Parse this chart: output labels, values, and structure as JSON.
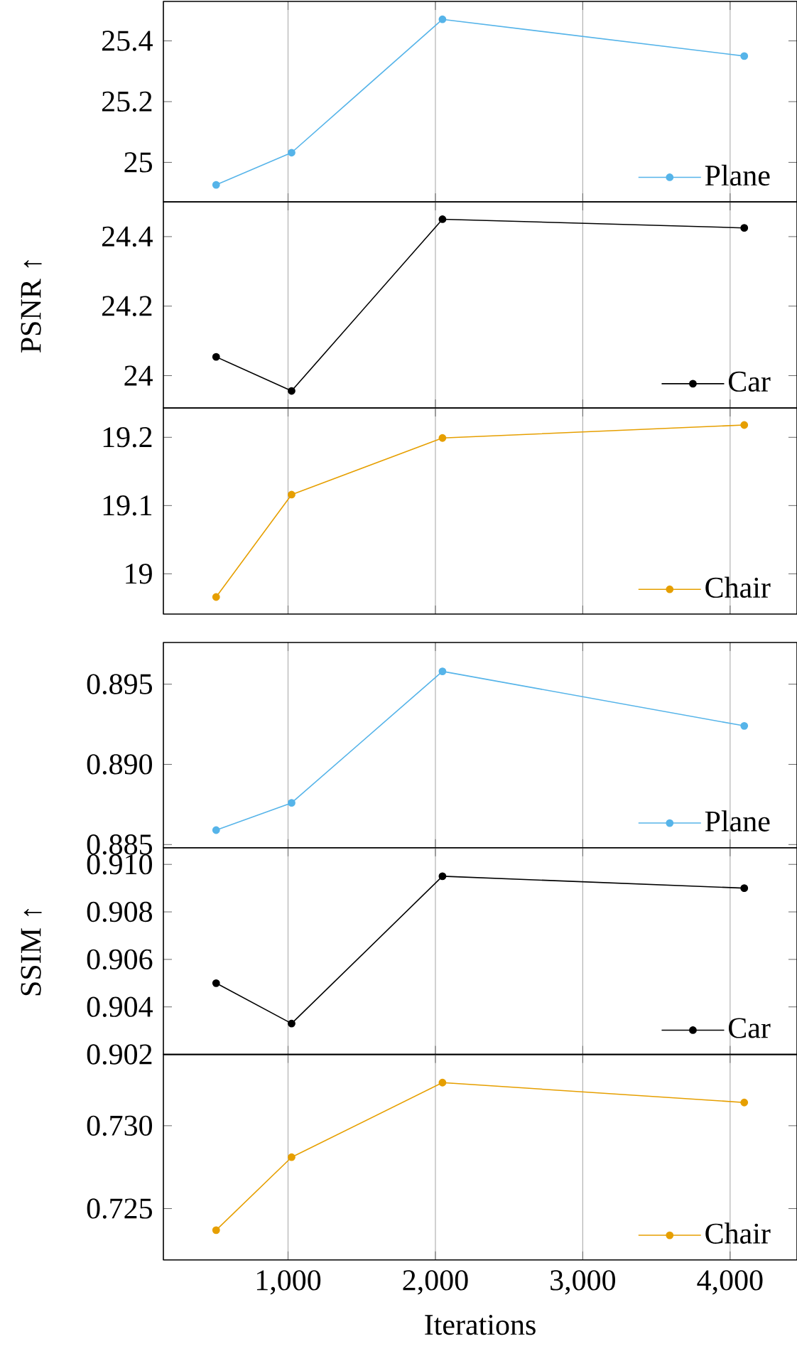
{
  "chart_data": [
    {
      "type": "line",
      "x": [
        512,
        1024,
        2048,
        4096
      ],
      "xlim": [
        154,
        4454
      ],
      "xticks": [
        {
          "value": 1000,
          "label": null
        },
        {
          "value": 2000,
          "label": null
        },
        {
          "value": 3000,
          "label": null
        },
        {
          "value": 4000,
          "label": null
        }
      ],
      "ylim": [
        24.87,
        25.53
      ],
      "yticks": [
        25,
        25.2,
        25.4
      ],
      "tick_labels": "y",
      "grid": "x",
      "legend": "bottom right",
      "marker": "circle",
      "series": [
        {
          "name": "Plane",
          "color": "#56b4e9",
          "values": [
            24.926,
            25.032,
            25.471,
            25.35
          ]
        }
      ]
    },
    {
      "type": "line",
      "x": [
        512,
        1024,
        2048,
        4096
      ],
      "xlim": [
        154,
        4454
      ],
      "xticks": [
        {
          "value": 1000,
          "label": null
        },
        {
          "value": 2000,
          "label": null
        },
        {
          "value": 3000,
          "label": null
        },
        {
          "value": 4000,
          "label": null
        }
      ],
      "ylim": [
        23.907,
        24.5
      ],
      "yticks": [
        24,
        24.2,
        24.4
      ],
      "tick_labels": "y",
      "grid": "x",
      "legend": "bottom right",
      "marker": "circle",
      "ylabel": "PSNR ↑",
      "series": [
        {
          "name": "Car",
          "color": "#000000",
          "values": [
            24.054,
            23.956,
            24.45,
            24.425
          ]
        }
      ]
    },
    {
      "type": "line",
      "x": [
        512,
        1024,
        2048,
        4096
      ],
      "xlim": [
        154,
        4454
      ],
      "xticks": [
        {
          "value": 1000,
          "label": null
        },
        {
          "value": 2000,
          "label": null
        },
        {
          "value": 3000,
          "label": null
        },
        {
          "value": 4000,
          "label": null
        }
      ],
      "ylim": [
        18.941,
        19.243
      ],
      "yticks": [
        19,
        19.1,
        19.2
      ],
      "tick_labels": "y",
      "grid": "x",
      "legend": "bottom right",
      "marker": "circle",
      "series": [
        {
          "name": "Chair",
          "color": "#e69f00",
          "values": [
            18.966,
            19.116,
            19.199,
            19.218
          ]
        }
      ]
    },
    {
      "type": "line",
      "x": [
        512,
        1024,
        2048,
        4096
      ],
      "xlim": [
        154,
        4454
      ],
      "xticks": [
        {
          "value": 1000,
          "label": null
        },
        {
          "value": 2000,
          "label": null
        },
        {
          "value": 3000,
          "label": null
        },
        {
          "value": 4000,
          "label": null
        }
      ],
      "ylim": [
        0.8848,
        0.8976
      ],
      "yticks": [
        0.885,
        {
          "value": 0.89,
          "label": "0.890"
        },
        0.895
      ],
      "tick_labels": "y",
      "grid": "x",
      "legend": "bottom right",
      "marker": "circle",
      "series": [
        {
          "name": "Plane",
          "color": "#56b4e9",
          "values": [
            0.8859,
            0.8876,
            0.8958,
            0.8924
          ]
        }
      ]
    },
    {
      "type": "line",
      "x": [
        512,
        1024,
        2048,
        4096
      ],
      "xlim": [
        154,
        4454
      ],
      "xticks": [
        {
          "value": 1000,
          "label": null
        },
        {
          "value": 2000,
          "label": null
        },
        {
          "value": 3000,
          "label": null
        },
        {
          "value": 4000,
          "label": null
        }
      ],
      "ylim": [
        0.902,
        0.9107
      ],
      "yticks": [
        0.902,
        0.904,
        0.906,
        0.908,
        {
          "value": 0.91,
          "label": "0.910"
        }
      ],
      "tick_labels": "y",
      "grid": "x",
      "legend": "bottom right",
      "marker": "circle",
      "ylabel": "SSIM ↑",
      "series": [
        {
          "name": "Car",
          "color": "#000000",
          "values": [
            0.905,
            0.9033,
            0.9095,
            0.909
          ]
        }
      ]
    },
    {
      "type": "line",
      "x": [
        512,
        1024,
        2048,
        4096
      ],
      "xlim": [
        154,
        4454
      ],
      "xticks": [
        {
          "value": 1000,
          "label": "1,000"
        },
        {
          "value": 2000,
          "label": "2,000"
        },
        {
          "value": 3000,
          "label": "3,000"
        },
        {
          "value": 4000,
          "label": "4,000"
        }
      ],
      "ylim": [
        0.7219,
        0.7343
      ],
      "yticks": [
        0.725,
        {
          "value": 0.73,
          "label": "0.730"
        }
      ],
      "grid": "x",
      "legend": "bottom right",
      "marker": "circle",
      "xlabel": "Iterations",
      "series": [
        {
          "name": "Chair",
          "color": "#e69f00",
          "values": [
            0.7237,
            0.7281,
            0.7326,
            0.7314
          ]
        }
      ]
    }
  ]
}
